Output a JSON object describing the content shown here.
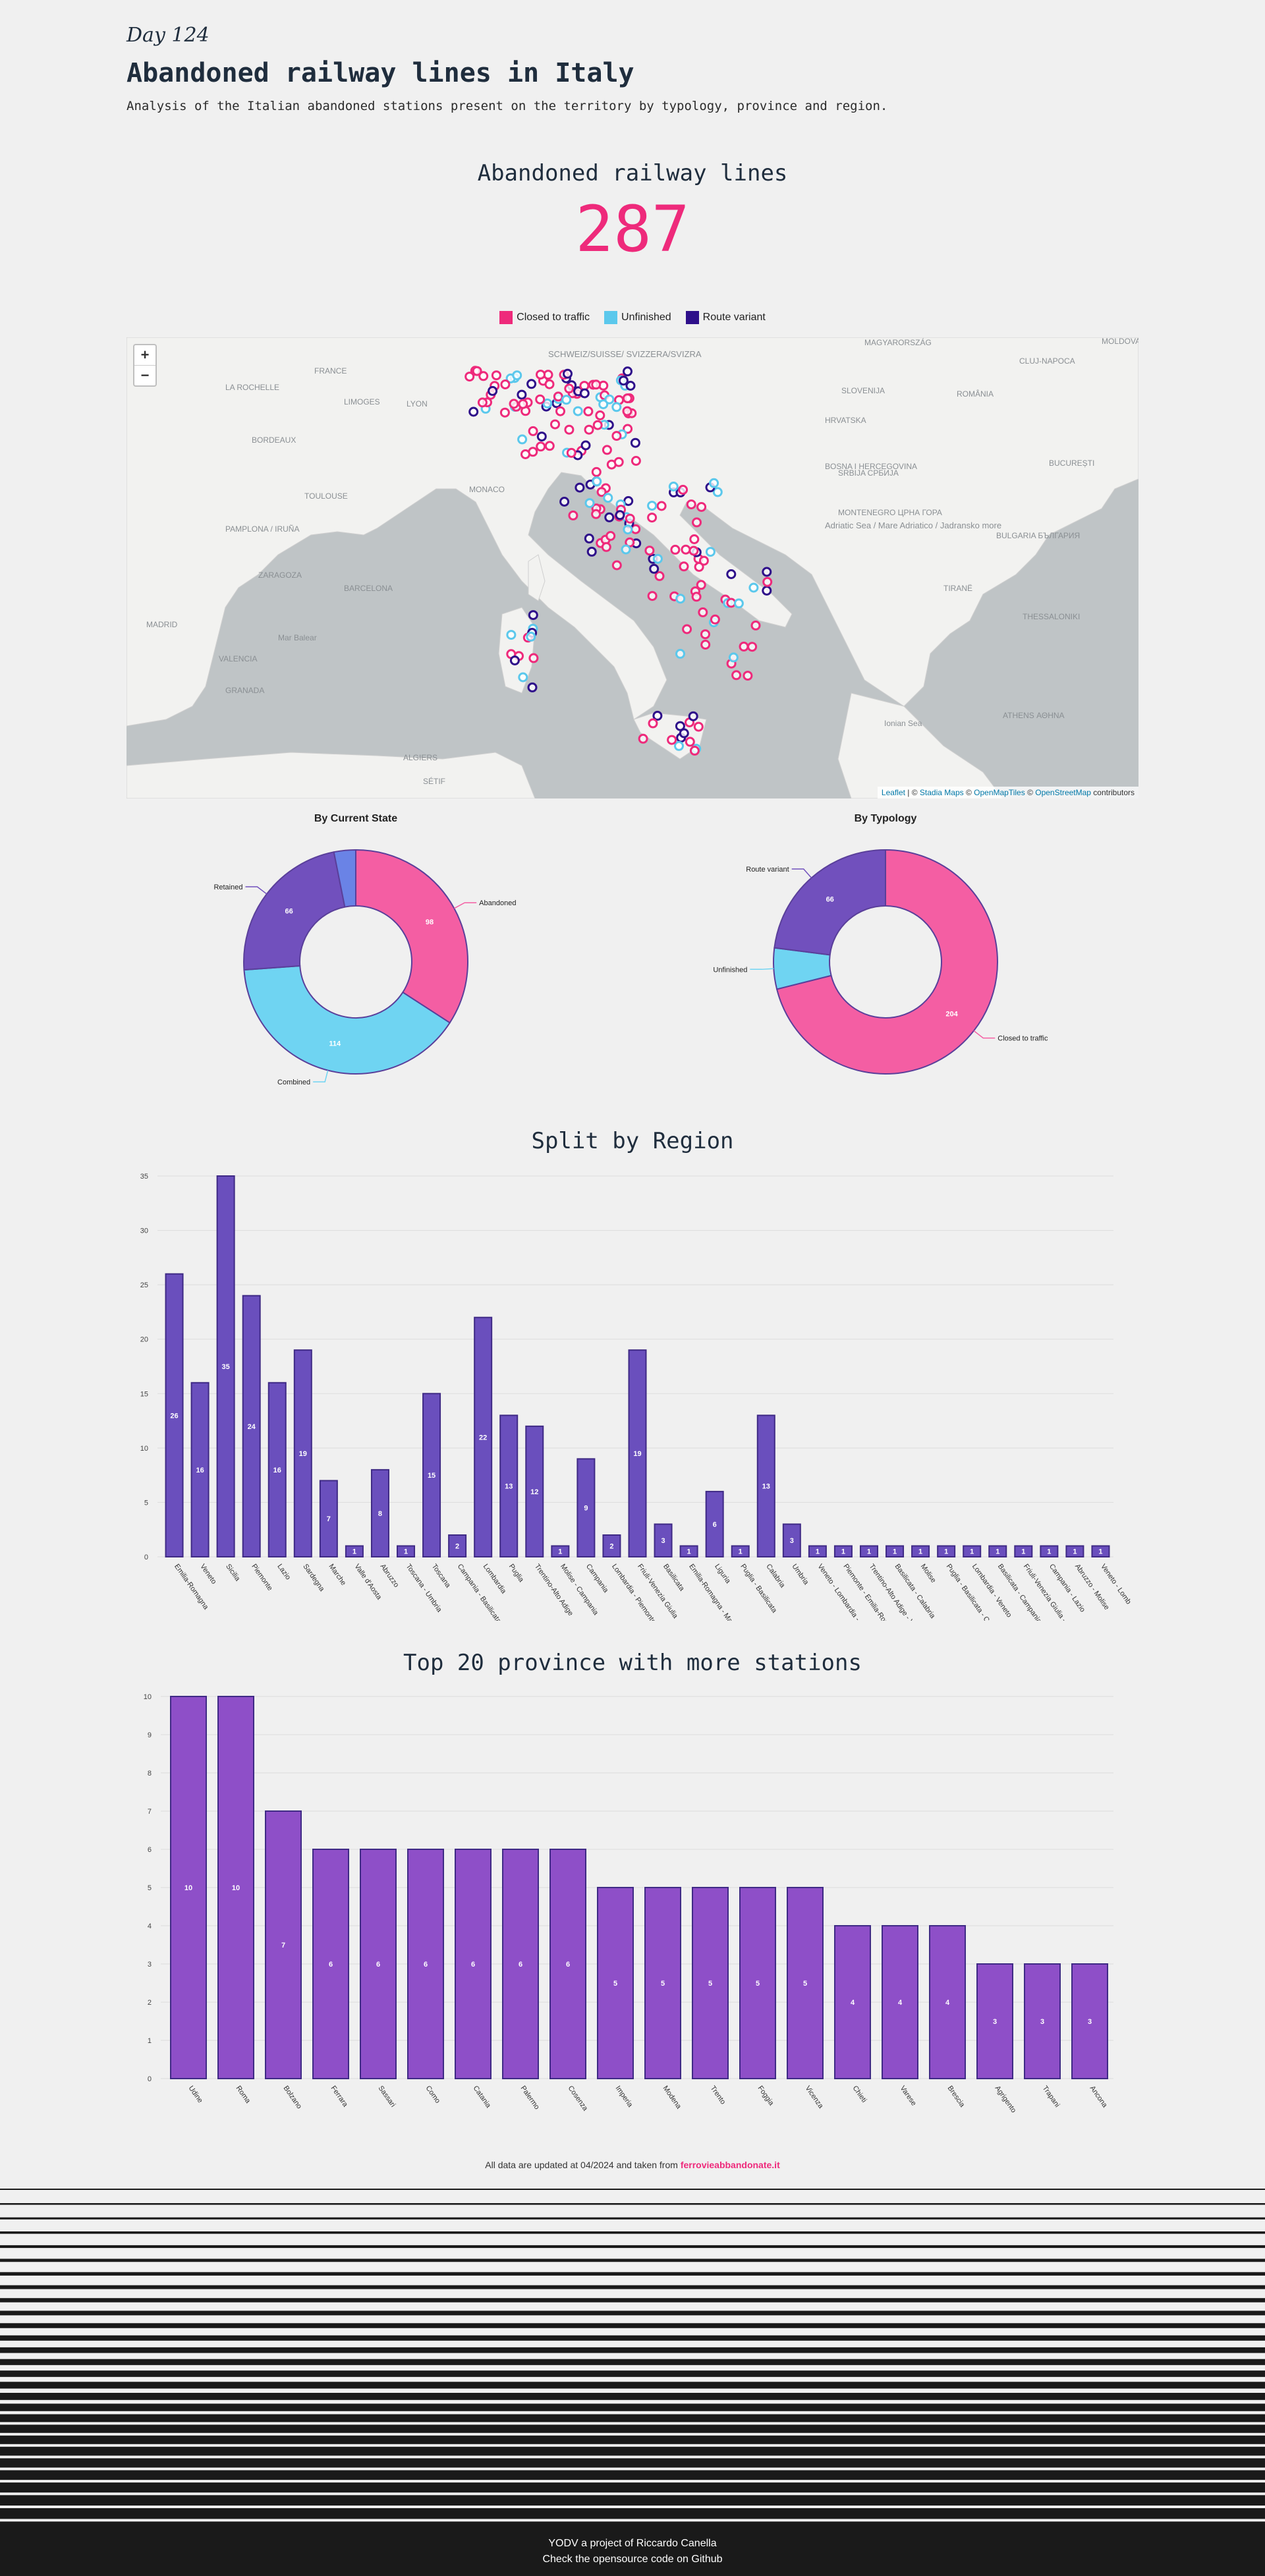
{
  "header": {
    "day": "Day 124",
    "title": "Abandoned railway lines in Italy",
    "subtitle": "Analysis of the Italian abandoned stations present on the territory by typology, province and region."
  },
  "kpi": {
    "label": "Abandoned railway lines",
    "value": "287"
  },
  "legend": [
    {
      "label": "Closed to traffic",
      "color": "#ee2a7b"
    },
    {
      "label": "Unfinished",
      "color": "#5bc8ec"
    },
    {
      "label": "Route variant",
      "color": "#2e0f8a"
    }
  ],
  "map": {
    "zoom_in": "+",
    "zoom_out": "−",
    "labels": [
      "SCHWEIZ/SUISSE/ SVIZZERA/SVIZRA",
      "FRANCE",
      "MAGYARORSZÁG",
      "MOLDOVA",
      "SLOVENIJA",
      "HRVATSKA",
      "ROMÂNIA",
      "BOSNA I HERCEGOVINA",
      "SRBIJA СРБИЈА",
      "BUCUREȘTI",
      "MONTENEGRO ЦРНА ГОРА",
      "BULGARIA БЪЛГАРИЯ",
      "MONACO",
      "TIRANË",
      "Adriatic Sea / Mare Adriatico / Jadransko more",
      "Mar Balear",
      "Ionian Sea",
      "MADRID",
      "ALGIERS",
      "ATHENS ΑΘΗΝΑ",
      "LA ROCHELLE",
      "LIMOGES",
      "LYON",
      "TOULOUSE",
      "PAMPLONA / IRUÑA",
      "ZARAGOZA",
      "BARCELONA",
      "VALENCIA",
      "GRANADA",
      "SÉTIF",
      "BORDEAUX",
      "CLUJ-NAPOCA",
      "THESSALONIKI"
    ],
    "attribution": {
      "leaflet": "Leaflet",
      "sep1": " | © ",
      "stadia": "Stadia Maps",
      "sep2": " © ",
      "omt": "OpenMapTiles",
      "sep3": " © ",
      "osm": "OpenStreetMap",
      "tail": " contributors"
    }
  },
  "chart_data": [
    {
      "type": "pie",
      "title": "By Current State",
      "donut": true,
      "slices": [
        {
          "label": "Abandoned",
          "value": 98,
          "color": "#f45ea3"
        },
        {
          "label": "Combined",
          "value": 114,
          "color": "#6fd4f2"
        },
        {
          "label": "Retained",
          "value": 66,
          "color": "#7150bd"
        },
        {
          "label": "",
          "value": 9,
          "color": "#6a83e6"
        }
      ]
    },
    {
      "type": "pie",
      "title": "By Typology",
      "donut": true,
      "slices": [
        {
          "label": "Closed to traffic",
          "value": 204,
          "color": "#f45ea3"
        },
        {
          "label": "Unfinished",
          "value": 17,
          "color": "#6fd4f2"
        },
        {
          "label": "Route variant",
          "value": 66,
          "color": "#7150bd"
        }
      ]
    },
    {
      "type": "bar",
      "title": "Split by Region",
      "color": "#6a4fbd",
      "ylim": [
        0,
        35
      ],
      "yticks": [
        0,
        5,
        10,
        15,
        20,
        25,
        30,
        35
      ],
      "categories": [
        "Emilia-Romagna",
        "Veneto",
        "Sicilia",
        "Piemonte",
        "Lazio",
        "Sardegna",
        "Marche",
        "Valle d'Aosta",
        "Abruzzo",
        "Toscana - Umbria",
        "Toscana",
        "Campania - Basilicata",
        "Lombardia",
        "Puglia",
        "Trentino-Alto Adige",
        "Molise - Campania",
        "Campania",
        "Lombardia - Piemonte",
        "Friuli-Venezia Giulia",
        "Basilicata",
        "Emilia-Romagna - Marche",
        "Liguria",
        "Puglia - Basilicata",
        "Calabria",
        "Umbria",
        "Veneto - Lombardia - Emil",
        "Piemonte - Emilia-Romagna",
        "Trentino-Alto Adige - Vene",
        "Basilicata - Calabria",
        "Molise",
        "Puglia - Basilicata - Campan",
        "Lombardia - Veneto",
        "Basilicata - Campania - P",
        "Friuli-Venezia Giulia - Ver",
        "Campania - Lazio",
        "Abruzzo - Molise",
        "Veneto - Lomb"
      ],
      "values": [
        26,
        16,
        35,
        24,
        16,
        19,
        7,
        1,
        8,
        1,
        15,
        2,
        22,
        13,
        12,
        1,
        9,
        2,
        19,
        3,
        1,
        6,
        1,
        13,
        3,
        1,
        1,
        1,
        1,
        1,
        1,
        1,
        1,
        1,
        1,
        1,
        1
      ]
    },
    {
      "type": "bar",
      "title": "Top 20 province with more stations",
      "color": "#8e4fc8",
      "ylim": [
        0,
        10
      ],
      "yticks": [
        0,
        1,
        2,
        3,
        4,
        5,
        6,
        7,
        8,
        9,
        10
      ],
      "categories": [
        "Udine",
        "Roma",
        "Bolzano",
        "Ferrara",
        "Sassari",
        "Como",
        "Catania",
        "Palermo",
        "Cosenza",
        "Imperia",
        "Modena",
        "Trento",
        "Foggia",
        "Vicenza",
        "Chieti",
        "Varese",
        "Brescia",
        "Agrigento",
        "Trapani",
        "Ancona"
      ],
      "values": [
        10,
        10,
        7,
        6,
        6,
        6,
        6,
        6,
        6,
        5,
        5,
        5,
        5,
        5,
        4,
        4,
        4,
        3,
        3,
        3
      ]
    }
  ],
  "footer": {
    "note": "All data are updated at 04/2024 and taken from ",
    "source": "ferrovieabbandonate.it",
    "line1": "YODV a project of Riccardo Canella",
    "line2": "Check the opensource code on Github"
  }
}
